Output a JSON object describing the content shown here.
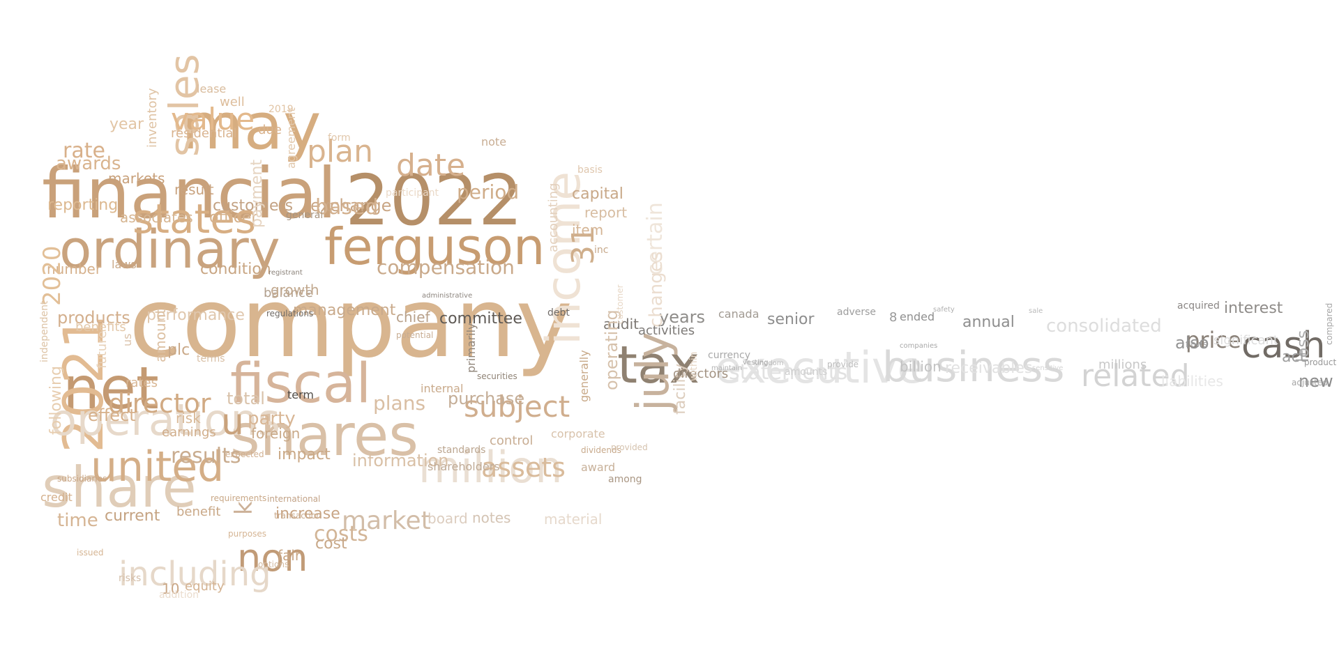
{
  "words": [
    {
      "text": "company",
      "color": "#d8b58f"
    },
    {
      "text": "financial",
      "color": "#c9a17a"
    },
    {
      "text": "2022",
      "color": "#b58f68"
    },
    {
      "text": "may",
      "color": "#d6ad80"
    },
    {
      "text": "ordinary",
      "color": "#c9a37e"
    },
    {
      "text": "ferguson",
      "color": "#c79c71"
    },
    {
      "text": "fiscal",
      "color": "#d6b49a"
    },
    {
      "text": "shares",
      "color": "#d9c0a7"
    },
    {
      "text": "share",
      "color": "#e0cdb8"
    },
    {
      "text": "net",
      "color": "#c49a72"
    },
    {
      "text": "2021",
      "color": "#e2bb92"
    },
    {
      "text": "income",
      "color": "#efe2d4"
    },
    {
      "text": "million",
      "color": "#eadfd3"
    },
    {
      "text": "operations",
      "color": "#e7d9ca"
    },
    {
      "text": "united",
      "color": "#d4ae87"
    },
    {
      "text": "states",
      "color": "#d7ae83"
    },
    {
      "text": "sales",
      "color": "#e2c4a4"
    },
    {
      "text": "value",
      "color": "#e3b98c"
    },
    {
      "text": "date",
      "color": "#d6b08d"
    },
    {
      "text": "plan",
      "color": "#d9b48f"
    },
    {
      "text": "tax",
      "color": "#8f8171"
    },
    {
      "text": "july",
      "color": "#c7b29d"
    },
    {
      "text": "31",
      "color": "#cfae8b"
    },
    {
      "text": "executive",
      "color": "#e4e4e4"
    },
    {
      "text": "business",
      "color": "#d9d9d9"
    },
    {
      "text": "cash",
      "color": "#716b65"
    },
    {
      "text": "price",
      "color": "#8a8178"
    },
    {
      "text": "related",
      "color": "#d3d3d3"
    },
    {
      "text": "statements",
      "color": "#e1e1e1"
    },
    {
      "text": "consolidated",
      "color": "#dddddd"
    },
    {
      "text": "interest",
      "color": "#8f8c89"
    },
    {
      "text": "also",
      "color": "#949494"
    },
    {
      "text": "loss",
      "color": "#adadad"
    },
    {
      "text": "act",
      "color": "#9e9e9e"
    },
    {
      "text": "new",
      "color": "#8b8b8b"
    },
    {
      "text": "liabilities",
      "color": "#e7e7e7"
    },
    {
      "text": "significant",
      "color": "#dddddd"
    },
    {
      "text": "subject",
      "color": "#d0ae8e"
    },
    {
      "text": "assets",
      "color": "#d9bb9b"
    },
    {
      "text": "compensation",
      "color": "#c9a98a"
    },
    {
      "text": "director",
      "color": "#d1aa83"
    },
    {
      "text": "u",
      "color": "#c9a27c"
    },
    {
      "text": "non",
      "color": "#c19b77"
    },
    {
      "text": "including",
      "color": "#e6d8c9"
    },
    {
      "text": "results",
      "color": "#c9ac8f"
    },
    {
      "text": "costs",
      "color": "#d2b597"
    },
    {
      "text": "market",
      "color": "#d2bda8"
    },
    {
      "text": "information",
      "color": "#d9c0a6"
    },
    {
      "text": "management",
      "color": "#c9aa8b"
    },
    {
      "text": "committee",
      "color": "#5e5954"
    },
    {
      "text": "plans",
      "color": "#d9bea3"
    },
    {
      "text": "products",
      "color": "#d3af8d"
    },
    {
      "text": "performance",
      "color": "#e0c7ad"
    },
    {
      "text": "years",
      "color": "#8e8c89"
    },
    {
      "text": "senior",
      "color": "#8d8d8d"
    },
    {
      "text": "annual",
      "color": "#8e8e8e"
    },
    {
      "text": "billion",
      "color": "#c2c2c2"
    },
    {
      "text": "receivables",
      "color": "#e1e1e1"
    },
    {
      "text": "millions",
      "color": "#c8c8c8"
    },
    {
      "text": "audit",
      "color": "#7c7772"
    },
    {
      "text": "operating",
      "color": "#d6c1ab"
    },
    {
      "text": "certain",
      "color": "#efe5da"
    },
    {
      "text": "changes",
      "color": "#ebddcf"
    },
    {
      "text": "facility",
      "color": "#dcccbc"
    },
    {
      "text": "activities",
      "color": "#7d7a77"
    },
    {
      "text": "directors",
      "color": "#a39383"
    },
    {
      "text": "canada",
      "color": "#a19a92"
    },
    {
      "text": "currency",
      "color": "#a8a8a8"
    },
    {
      "text": "ended",
      "color": "#8f8f8f"
    },
    {
      "text": "8",
      "color": "#999999"
    },
    {
      "text": "adverse",
      "color": "#9d9d9d"
    },
    {
      "text": "amounts",
      "color": "#cfcfcf"
    },
    {
      "text": "report",
      "color": "#d7bda2"
    },
    {
      "text": "capital",
      "color": "#c8a888"
    },
    {
      "text": "item",
      "color": "#d4b494"
    },
    {
      "text": "period",
      "color": "#cfac88"
    },
    {
      "text": "exchange",
      "color": "#c9a685"
    },
    {
      "text": "based",
      "color": "#d3b18f"
    },
    {
      "text": "customers",
      "color": "#c3a283"
    },
    {
      "text": "officer",
      "color": "#d5b18b"
    },
    {
      "text": "associates",
      "color": "#d6b591"
    },
    {
      "text": "condition",
      "color": "#c8a582"
    },
    {
      "text": "balance",
      "color": "#b2a08e"
    },
    {
      "text": "growth",
      "color": "#c2a98f"
    },
    {
      "text": "general",
      "color": "#a89580"
    },
    {
      "text": "chief",
      "color": "#b8a18a"
    },
    {
      "text": "purchase",
      "color": "#c4ad96"
    },
    {
      "text": "total",
      "color": "#d9c2aa"
    },
    {
      "text": "party",
      "color": "#d8b695"
    },
    {
      "text": "foreign",
      "color": "#c9a988"
    },
    {
      "text": "impact",
      "color": "#caa987"
    },
    {
      "text": "risk",
      "color": "#d8b896"
    },
    {
      "text": "earnings",
      "color": "#d0ad8a"
    },
    {
      "text": "plc",
      "color": "#c9a887"
    },
    {
      "text": "terms",
      "color": "#d8bfa5"
    },
    {
      "text": "effect",
      "color": "#d6b08a"
    },
    {
      "text": "rates",
      "color": "#d8b693"
    },
    {
      "text": "amount",
      "color": "#dcc0a2"
    },
    {
      "text": "us",
      "color": "#dbc3aa"
    },
    {
      "text": "number",
      "color": "#d5b08b"
    },
    {
      "text": "laws",
      "color": "#c9a887"
    },
    {
      "text": "benefits",
      "color": "#e3c8a9"
    },
    {
      "text": "future",
      "color": "#e7d1b8"
    },
    {
      "text": "following",
      "color": "#e7cdaf"
    },
    {
      "text": "2020",
      "color": "#e2bf97"
    },
    {
      "text": "independent",
      "color": "#ddc3a5"
    },
    {
      "text": "reporting",
      "color": "#dcb88f"
    },
    {
      "text": "markets",
      "color": "#c8a07a"
    },
    {
      "text": "rate",
      "color": "#d8b08a"
    },
    {
      "text": "awards",
      "color": "#d9b48e"
    },
    {
      "text": "year",
      "color": "#e2c5a5"
    },
    {
      "text": "inventory",
      "color": "#dfc3a4"
    },
    {
      "text": "residential",
      "color": "#d9b38f"
    },
    {
      "text": "result",
      "color": "#c9a37f"
    },
    {
      "text": "lease",
      "color": "#d9bc9d"
    },
    {
      "text": "well",
      "color": "#ddbd9b"
    },
    {
      "text": "due",
      "color": "#d9b28c"
    },
    {
      "text": "2019",
      "color": "#e1c4a4"
    },
    {
      "text": "agreement",
      "color": "#e2c8ac"
    },
    {
      "text": "current",
      "color": "#c5a382"
    },
    {
      "text": "benefit",
      "color": "#c9a887"
    },
    {
      "text": "time",
      "color": "#d5b493"
    },
    {
      "text": "credit",
      "color": "#d4b08c"
    },
    {
      "text": "equity",
      "color": "#d4b392"
    },
    {
      "text": "10",
      "color": "#c9a685"
    },
    {
      "text": "fair",
      "color": "#c8a786"
    },
    {
      "text": "cost",
      "color": "#c8a888"
    },
    {
      "text": "increase",
      "color": "#c8a585"
    },
    {
      "text": "board",
      "color": "#dccdbf"
    },
    {
      "text": "notes",
      "color": "#d4c4b4"
    },
    {
      "text": "material",
      "color": "#e6d9cc"
    },
    {
      "text": "award",
      "color": "#c8b19a"
    },
    {
      "text": "corporate",
      "color": "#d8c2ab"
    },
    {
      "text": "dividends",
      "color": "#c8aa8c"
    },
    {
      "text": "control",
      "color": "#c8ad93"
    },
    {
      "text": "shareholders",
      "color": "#bfaa95"
    },
    {
      "text": "internal",
      "color": "#c9aa8b"
    },
    {
      "text": "term",
      "color": "#4f4b47"
    },
    {
      "text": "k",
      "color": "#ccb198"
    },
    {
      "text": "payment",
      "color": "#e6d4c1"
    },
    {
      "text": "accounting",
      "color": "#e3d0bd"
    },
    {
      "text": "participant",
      "color": "#ead9c7"
    },
    {
      "text": "note",
      "color": "#c8ad93"
    },
    {
      "text": "form",
      "color": "#e1c7ab"
    },
    {
      "text": "basis",
      "color": "#dfc6ad"
    },
    {
      "text": "customer",
      "color": "#e7d7c6"
    },
    {
      "text": "inc",
      "color": "#c6a88a"
    },
    {
      "text": "provided",
      "color": "#d5c2ae"
    },
    {
      "text": "among",
      "color": "#a99683"
    },
    {
      "text": "debt",
      "color": "#6f6a66"
    },
    {
      "text": "primarily",
      "color": "#8f8479"
    },
    {
      "text": "securities",
      "color": "#8f8376"
    },
    {
      "text": "standards",
      "color": "#bba58f"
    },
    {
      "text": "generally",
      "color": "#c8a988"
    },
    {
      "text": "within",
      "color": "#e6d6c5"
    },
    {
      "text": "acquired",
      "color": "#8a8684"
    },
    {
      "text": "flows",
      "color": "#9a9a9a"
    },
    {
      "text": "adjusted",
      "color": "#a6a6a6"
    },
    {
      "text": "compared",
      "color": "#a6a6a6"
    },
    {
      "text": "sale",
      "color": "#bababa"
    },
    {
      "text": "safety",
      "color": "#b0b0b0"
    },
    {
      "text": "product",
      "color": "#979797"
    },
    {
      "text": "regulations",
      "color": "#6f6a65"
    },
    {
      "text": "registrant",
      "color": "#8b8279"
    },
    {
      "text": "administrative",
      "color": "#8d867f"
    },
    {
      "text": "requirements",
      "color": "#c9a887"
    },
    {
      "text": "international",
      "color": "#c2a286"
    },
    {
      "text": "transaction",
      "color": "#c9a98a"
    },
    {
      "text": "subsidiaries",
      "color": "#c8a585"
    },
    {
      "text": "potential",
      "color": "#c8ad93"
    },
    {
      "text": "options",
      "color": "#d2b99f"
    },
    {
      "text": "risks",
      "color": "#d3bda7"
    },
    {
      "text": "addition",
      "color": "#eadccd"
    },
    {
      "text": "issued",
      "color": "#d5b593"
    },
    {
      "text": "purposes",
      "color": "#d5b594"
    },
    {
      "text": "expected",
      "color": "#d1b091"
    },
    {
      "text": "companies",
      "color": "#a8a8a8"
    },
    {
      "text": "provide",
      "color": "#bcbcbc"
    },
    {
      "text": "maintain",
      "color": "#b3b3b3"
    },
    {
      "text": "vesting",
      "color": "#a7a7a7"
    },
    {
      "text": "kingdom",
      "color": "#b8b8b8"
    },
    {
      "text": "sensitive",
      "color": "#d4d4d4"
    }
  ]
}
